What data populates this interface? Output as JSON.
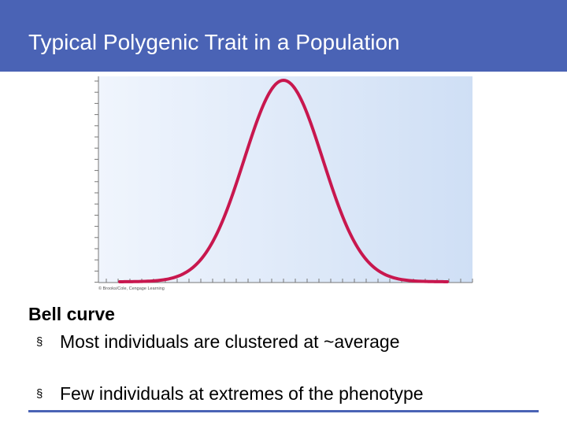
{
  "slide": {
    "title": "Typical Polygenic Trait in a Population",
    "heading": "Bell curve",
    "bullet_marker": "§",
    "bullets": [
      "Most individuals are clustered at ~average",
      "Few individuals at extremes of the phenotype"
    ]
  },
  "figure": {
    "credit": "© Brooks/Cole, Cengage Learning",
    "curve_color": "#c8174e",
    "background_start": "#f0f5fd",
    "background_end": "#cfdff5"
  },
  "colors": {
    "accent": "#4a63b5"
  }
}
